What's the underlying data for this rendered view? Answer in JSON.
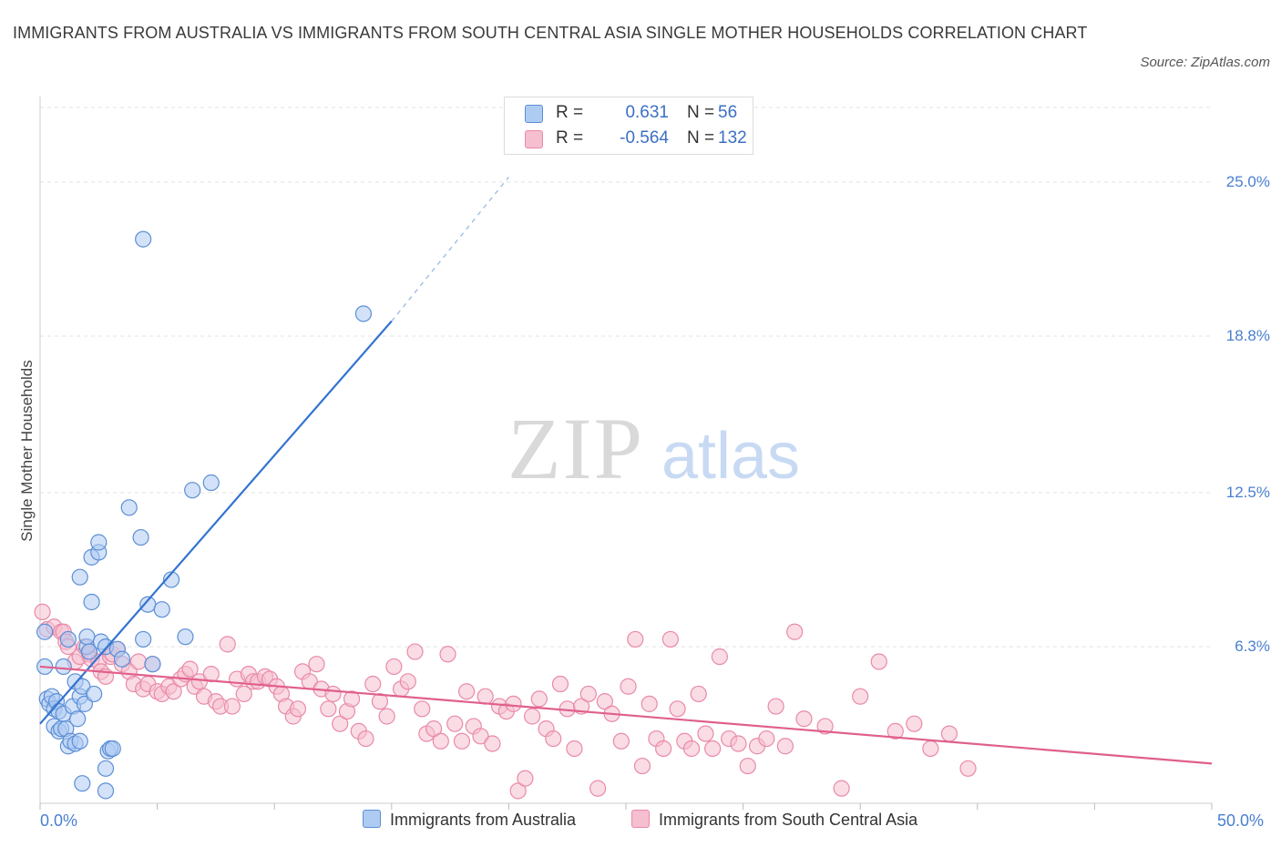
{
  "title": "IMMIGRANTS FROM AUSTRALIA VS IMMIGRANTS FROM SOUTH CENTRAL ASIA SINGLE MOTHER HOUSEHOLDS CORRELATION CHART",
  "source": "Source: ZipAtlas.com",
  "watermark": {
    "zip": "ZIP",
    "atlas": "atlas"
  },
  "colors": {
    "blue_fill": "#aecbf2",
    "blue_stroke": "#5b8fd6",
    "blue_line": "#3474d0",
    "pink_fill": "#f5bfd0",
    "pink_stroke": "#e98aa8",
    "pink_line": "#e05f8c",
    "tick_label": "#4a7fd1",
    "grid": "#e3e3e3"
  },
  "legend": [
    {
      "r_label": "R =",
      "r_value": "0.631",
      "n_label": "N =",
      "n_value": "56"
    },
    {
      "r_label": "R =",
      "r_value": "-0.564",
      "n_label": "N =",
      "n_value": "132"
    }
  ],
  "chart_data": {
    "type": "scatter",
    "title": "IMMIGRANTS FROM AUSTRALIA VS IMMIGRANTS FROM SOUTH CENTRAL ASIA SINGLE MOTHER HOUSEHOLDS CORRELATION CHART",
    "xlabel": "",
    "ylabel": "Single Mother Households",
    "xlim": [
      0,
      50
    ],
    "ylim": [
      0,
      28
    ],
    "x_tick_labels": [
      "0.0%",
      "50.0%"
    ],
    "y_ticks": [
      6.3,
      12.5,
      18.8,
      25.0
    ],
    "y_tick_labels": [
      "6.3%",
      "12.5%",
      "18.8%",
      "25.0%"
    ],
    "grid": true,
    "legend_position": "top-center",
    "series": [
      {
        "name": "Immigrants from Australia",
        "color": "#5b8fd6",
        "r": 0.631,
        "n": 56,
        "trend": {
          "x0": 0.0,
          "y0": 3.2,
          "x1": 15.0,
          "y1": 19.4,
          "dash_to_x": 20.0,
          "dash_to_y": 25.2
        },
        "points": [
          [
            0.2,
            6.9
          ],
          [
            0.2,
            5.5
          ],
          [
            0.3,
            4.2
          ],
          [
            0.4,
            4.0
          ],
          [
            0.5,
            4.3
          ],
          [
            0.6,
            3.8
          ],
          [
            0.6,
            3.1
          ],
          [
            0.7,
            4.1
          ],
          [
            0.8,
            3.7
          ],
          [
            0.8,
            2.9
          ],
          [
            0.9,
            3.0
          ],
          [
            1.0,
            5.5
          ],
          [
            1.0,
            3.6
          ],
          [
            1.1,
            3.0
          ],
          [
            1.2,
            2.3
          ],
          [
            1.2,
            6.6
          ],
          [
            1.3,
            2.5
          ],
          [
            1.4,
            3.9
          ],
          [
            1.5,
            2.4
          ],
          [
            1.5,
            4.9
          ],
          [
            1.6,
            3.4
          ],
          [
            1.7,
            2.5
          ],
          [
            1.7,
            4.3
          ],
          [
            1.7,
            9.1
          ],
          [
            1.8,
            4.7
          ],
          [
            1.8,
            0.8
          ],
          [
            1.9,
            4.0
          ],
          [
            2.0,
            6.3
          ],
          [
            2.0,
            6.7
          ],
          [
            2.1,
            6.1
          ],
          [
            2.2,
            8.1
          ],
          [
            2.2,
            9.9
          ],
          [
            2.3,
            4.4
          ],
          [
            2.5,
            10.1
          ],
          [
            2.5,
            10.5
          ],
          [
            2.6,
            6.5
          ],
          [
            2.8,
            6.3
          ],
          [
            2.8,
            1.4
          ],
          [
            2.8,
            0.5
          ],
          [
            2.9,
            2.1
          ],
          [
            3.0,
            2.2
          ],
          [
            3.1,
            2.2
          ],
          [
            3.3,
            6.2
          ],
          [
            3.5,
            5.8
          ],
          [
            3.8,
            11.9
          ],
          [
            4.3,
            10.7
          ],
          [
            4.4,
            6.6
          ],
          [
            4.4,
            22.7
          ],
          [
            4.6,
            8.0
          ],
          [
            4.8,
            5.6
          ],
          [
            5.2,
            7.8
          ],
          [
            5.6,
            9.0
          ],
          [
            6.2,
            6.7
          ],
          [
            6.5,
            12.6
          ],
          [
            7.3,
            12.9
          ],
          [
            13.8,
            19.7
          ]
        ]
      },
      {
        "name": "Immigrants from South Central Asia",
        "color": "#e98aa8",
        "r": -0.564,
        "n": 132,
        "trend": {
          "x0": 0.0,
          "y0": 5.5,
          "x1": 50.0,
          "y1": 1.6
        },
        "points": [
          [
            0.1,
            7.7
          ],
          [
            0.3,
            7.0
          ],
          [
            0.6,
            7.1
          ],
          [
            0.9,
            6.9
          ],
          [
            1.0,
            6.9
          ],
          [
            1.1,
            6.5
          ],
          [
            1.2,
            6.3
          ],
          [
            1.5,
            5.7
          ],
          [
            1.7,
            5.9
          ],
          [
            1.9,
            6.3
          ],
          [
            2.1,
            6.0
          ],
          [
            2.2,
            5.8
          ],
          [
            2.5,
            5.7
          ],
          [
            2.6,
            5.3
          ],
          [
            2.8,
            5.1
          ],
          [
            3.0,
            5.9
          ],
          [
            3.1,
            6.0
          ],
          [
            3.3,
            6.2
          ],
          [
            3.5,
            5.6
          ],
          [
            3.8,
            5.3
          ],
          [
            4.0,
            4.8
          ],
          [
            4.2,
            5.7
          ],
          [
            4.4,
            4.6
          ],
          [
            4.6,
            4.8
          ],
          [
            4.8,
            5.6
          ],
          [
            5.0,
            4.5
          ],
          [
            5.2,
            4.4
          ],
          [
            5.5,
            4.7
          ],
          [
            5.7,
            4.5
          ],
          [
            6.0,
            5.0
          ],
          [
            6.2,
            5.2
          ],
          [
            6.4,
            5.4
          ],
          [
            6.6,
            4.7
          ],
          [
            6.8,
            4.9
          ],
          [
            7.0,
            4.3
          ],
          [
            7.3,
            5.2
          ],
          [
            7.5,
            4.1
          ],
          [
            7.7,
            3.9
          ],
          [
            8.0,
            6.4
          ],
          [
            8.2,
            3.9
          ],
          [
            8.4,
            5.0
          ],
          [
            8.7,
            4.4
          ],
          [
            8.9,
            5.2
          ],
          [
            9.1,
            4.9
          ],
          [
            9.3,
            4.9
          ],
          [
            9.6,
            5.1
          ],
          [
            9.8,
            5.0
          ],
          [
            10.1,
            4.7
          ],
          [
            10.3,
            4.4
          ],
          [
            10.5,
            3.9
          ],
          [
            10.8,
            3.5
          ],
          [
            11.0,
            3.8
          ],
          [
            11.2,
            5.3
          ],
          [
            11.5,
            4.9
          ],
          [
            11.8,
            5.6
          ],
          [
            12.0,
            4.6
          ],
          [
            12.3,
            3.8
          ],
          [
            12.5,
            4.4
          ],
          [
            12.8,
            3.2
          ],
          [
            13.1,
            3.7
          ],
          [
            13.3,
            4.2
          ],
          [
            13.6,
            2.9
          ],
          [
            13.9,
            2.6
          ],
          [
            14.2,
            4.8
          ],
          [
            14.5,
            4.1
          ],
          [
            14.8,
            3.5
          ],
          [
            15.1,
            5.5
          ],
          [
            15.4,
            4.6
          ],
          [
            15.7,
            4.9
          ],
          [
            16.0,
            6.1
          ],
          [
            16.3,
            3.8
          ],
          [
            16.5,
            2.8
          ],
          [
            16.8,
            3.0
          ],
          [
            17.1,
            2.5
          ],
          [
            17.4,
            6.0
          ],
          [
            17.7,
            3.2
          ],
          [
            18.0,
            2.5
          ],
          [
            18.2,
            4.5
          ],
          [
            18.5,
            3.1
          ],
          [
            18.8,
            2.7
          ],
          [
            19.0,
            4.3
          ],
          [
            19.3,
            2.4
          ],
          [
            19.6,
            3.9
          ],
          [
            19.9,
            3.7
          ],
          [
            20.2,
            4.0
          ],
          [
            20.4,
            0.5
          ],
          [
            20.7,
            1.0
          ],
          [
            21.0,
            3.5
          ],
          [
            21.3,
            4.2
          ],
          [
            21.6,
            3.0
          ],
          [
            21.9,
            2.6
          ],
          [
            22.2,
            4.8
          ],
          [
            22.5,
            3.8
          ],
          [
            22.8,
            2.2
          ],
          [
            23.1,
            3.9
          ],
          [
            23.4,
            4.4
          ],
          [
            23.8,
            0.6
          ],
          [
            24.1,
            4.1
          ],
          [
            24.4,
            3.6
          ],
          [
            24.8,
            2.5
          ],
          [
            25.1,
            4.7
          ],
          [
            25.4,
            6.6
          ],
          [
            25.7,
            1.5
          ],
          [
            26.0,
            4.0
          ],
          [
            26.3,
            2.6
          ],
          [
            26.6,
            2.2
          ],
          [
            26.9,
            6.6
          ],
          [
            27.2,
            3.8
          ],
          [
            27.5,
            2.5
          ],
          [
            27.8,
            2.2
          ],
          [
            28.1,
            4.4
          ],
          [
            28.4,
            2.8
          ],
          [
            28.7,
            2.2
          ],
          [
            29.0,
            5.9
          ],
          [
            29.4,
            2.6
          ],
          [
            29.8,
            2.4
          ],
          [
            30.2,
            1.5
          ],
          [
            30.6,
            2.3
          ],
          [
            31.0,
            2.6
          ],
          [
            31.4,
            3.9
          ],
          [
            31.8,
            2.3
          ],
          [
            32.2,
            6.9
          ],
          [
            32.6,
            3.4
          ],
          [
            33.5,
            3.1
          ],
          [
            34.2,
            0.6
          ],
          [
            35.0,
            4.3
          ],
          [
            35.8,
            5.7
          ],
          [
            36.5,
            2.9
          ],
          [
            37.3,
            3.2
          ],
          [
            38.0,
            2.2
          ],
          [
            38.8,
            2.8
          ],
          [
            39.6,
            1.4
          ]
        ]
      }
    ]
  },
  "bottom_legend": [
    "Immigrants from Australia",
    "Immigrants from South Central Asia"
  ]
}
